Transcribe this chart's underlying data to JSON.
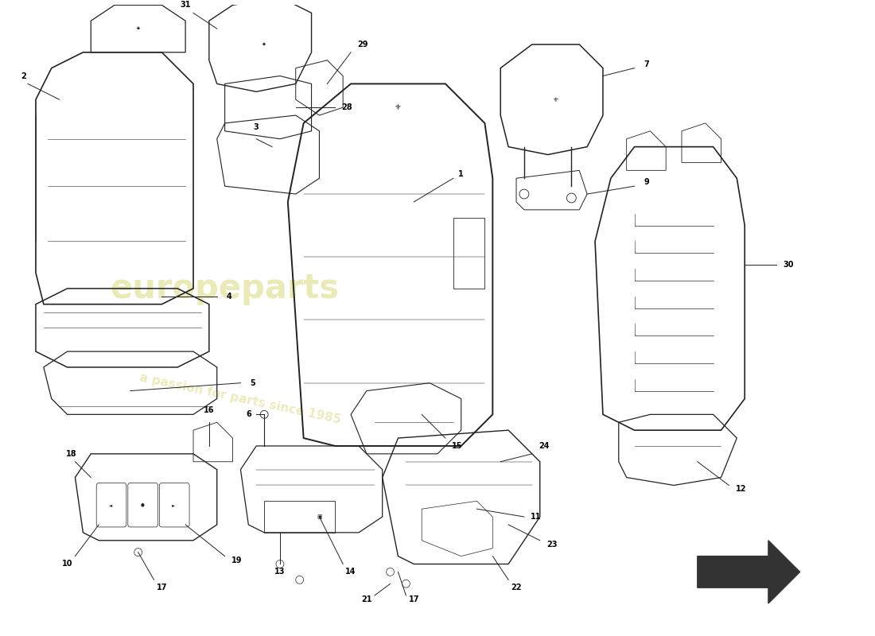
{
  "background_color": "#ffffff",
  "watermark_text": "europeparts",
  "watermark_subtext": "a passion for parts since 1985",
  "watermark_color": "#e8e8b0",
  "line_color": "#222222",
  "arrow_color": "#222222",
  "part_label_color": "#000000",
  "part_numbers_fs": 7
}
